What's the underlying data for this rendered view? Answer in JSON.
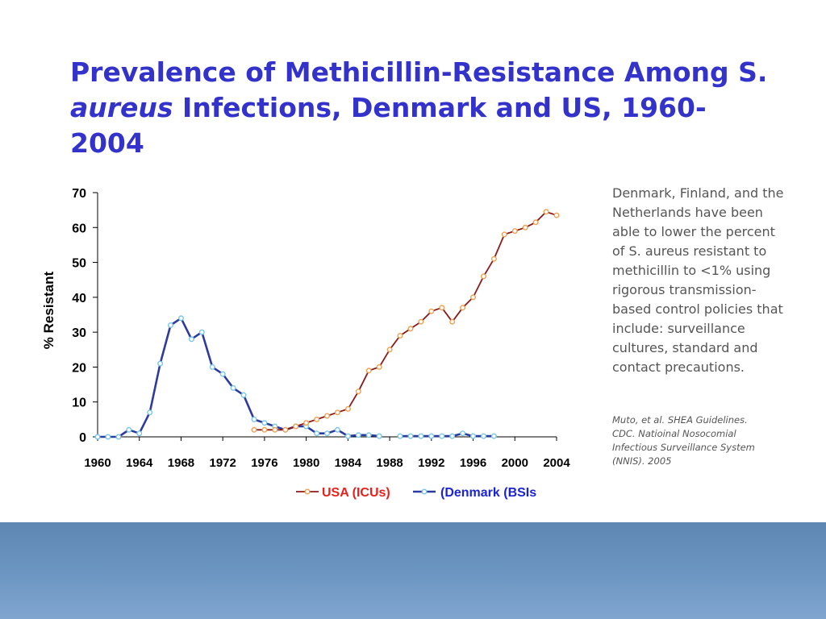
{
  "slide": {
    "title_line1": "Prevalence of Methicillin-Resistance Among S.",
    "title_italic": "aureus",
    "title_rest": " Infections, Denmark and US, 1960-2004",
    "note": "Denmark, Finland, and the Netherlands have been able to lower the percent of S. aureus resistant to methicillin to <1% using rigorous transmission-based control policies that include: surveillance cultures, standard and contact precautions.",
    "citation": [
      "Muto, et al. SHEA Guidelines.",
      "CDC. Natioinal Nosocomial",
      "Infectious Surveillance System",
      "(NNIS). 2005"
    ]
  },
  "chart_data": {
    "type": "line",
    "title": "",
    "xlabel": "",
    "ylabel": "% Resistant",
    "xlim": [
      1960,
      2004
    ],
    "ylim": [
      0,
      70
    ],
    "x_ticks": [
      1960,
      1964,
      1968,
      1972,
      1976,
      1980,
      1984,
      1988,
      1992,
      1996,
      2000,
      2004
    ],
    "y_ticks": [
      0,
      10,
      20,
      30,
      40,
      50,
      60,
      70
    ],
    "grid": false,
    "legend_position": "bottom",
    "series": [
      {
        "name": "USA (ICUs)",
        "line_color": "#8b1a1a",
        "marker_color": "#f0a050",
        "legend_text_color": "#e8201a",
        "points": [
          [
            1975,
            2
          ],
          [
            1976,
            2
          ],
          [
            1977,
            2
          ],
          [
            1978,
            2
          ],
          [
            1979,
            3
          ],
          [
            1980,
            4
          ],
          [
            1981,
            5
          ],
          [
            1982,
            6
          ],
          [
            1983,
            7
          ],
          [
            1984,
            8
          ],
          [
            1985,
            13
          ],
          [
            1986,
            19
          ],
          [
            1987,
            20
          ],
          [
            1988,
            25
          ],
          [
            1989,
            29
          ],
          [
            1990,
            31
          ],
          [
            1991,
            33
          ],
          [
            1992,
            36
          ],
          [
            1993,
            37
          ],
          [
            1994,
            33
          ],
          [
            1995,
            37
          ],
          [
            1996,
            40
          ],
          [
            1997,
            46
          ],
          [
            1998,
            51
          ],
          [
            1999,
            58
          ],
          [
            2000,
            59
          ],
          [
            2001,
            60
          ],
          [
            2002,
            61.5
          ],
          [
            2003,
            64.5
          ],
          [
            2004,
            63.5
          ]
        ]
      },
      {
        "name": "(Denmark (BSIs",
        "line_color": "#2e3a9e",
        "marker_color": "#7ac6e6",
        "legend_text_color": "#1a24d6",
        "segments": [
          [
            [
              1960,
              0
            ],
            [
              1961,
              0
            ],
            [
              1962,
              0
            ],
            [
              1963,
              2
            ],
            [
              1964,
              1
            ],
            [
              1965,
              7
            ],
            [
              1966,
              21
            ],
            [
              1967,
              32
            ],
            [
              1968,
              34
            ],
            [
              1969,
              28
            ],
            [
              1970,
              30
            ],
            [
              1971,
              20
            ],
            [
              1972,
              18
            ],
            [
              1973,
              14
            ],
            [
              1974,
              12
            ],
            [
              1975,
              5
            ],
            [
              1976,
              4
            ],
            [
              1977,
              3
            ],
            [
              1978,
              2
            ],
            [
              1979,
              3
            ],
            [
              1980,
              3
            ],
            [
              1981,
              1
            ],
            [
              1982,
              1
            ],
            [
              1983,
              2
            ],
            [
              1984,
              0.2
            ],
            [
              1985,
              0.5
            ],
            [
              1986,
              0.5
            ],
            [
              1987,
              0.2
            ]
          ],
          [
            [
              1989,
              0.2
            ],
            [
              1990,
              0.2
            ],
            [
              1991,
              0.2
            ],
            [
              1992,
              0.2
            ],
            [
              1993,
              0.2
            ],
            [
              1994,
              0.2
            ],
            [
              1995,
              1
            ],
            [
              1996,
              0.2
            ],
            [
              1997,
              0.2
            ],
            [
              1998,
              0.2
            ]
          ]
        ]
      }
    ]
  }
}
